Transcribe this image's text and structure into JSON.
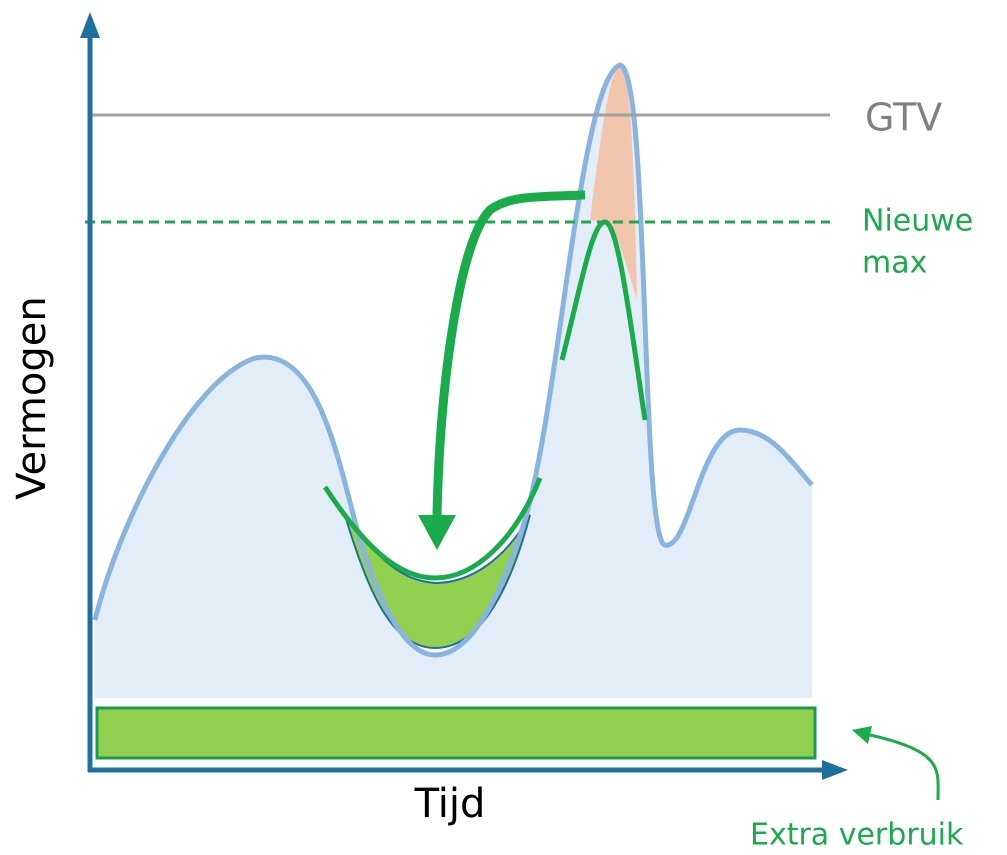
{
  "labels": {
    "gtv": "GTV",
    "new_max": [
      "Nieuwe",
      "max"
    ],
    "y_axis": "Vermogen",
    "x_axis": "Tijd",
    "extra": "Extra verbruik"
  }
}
